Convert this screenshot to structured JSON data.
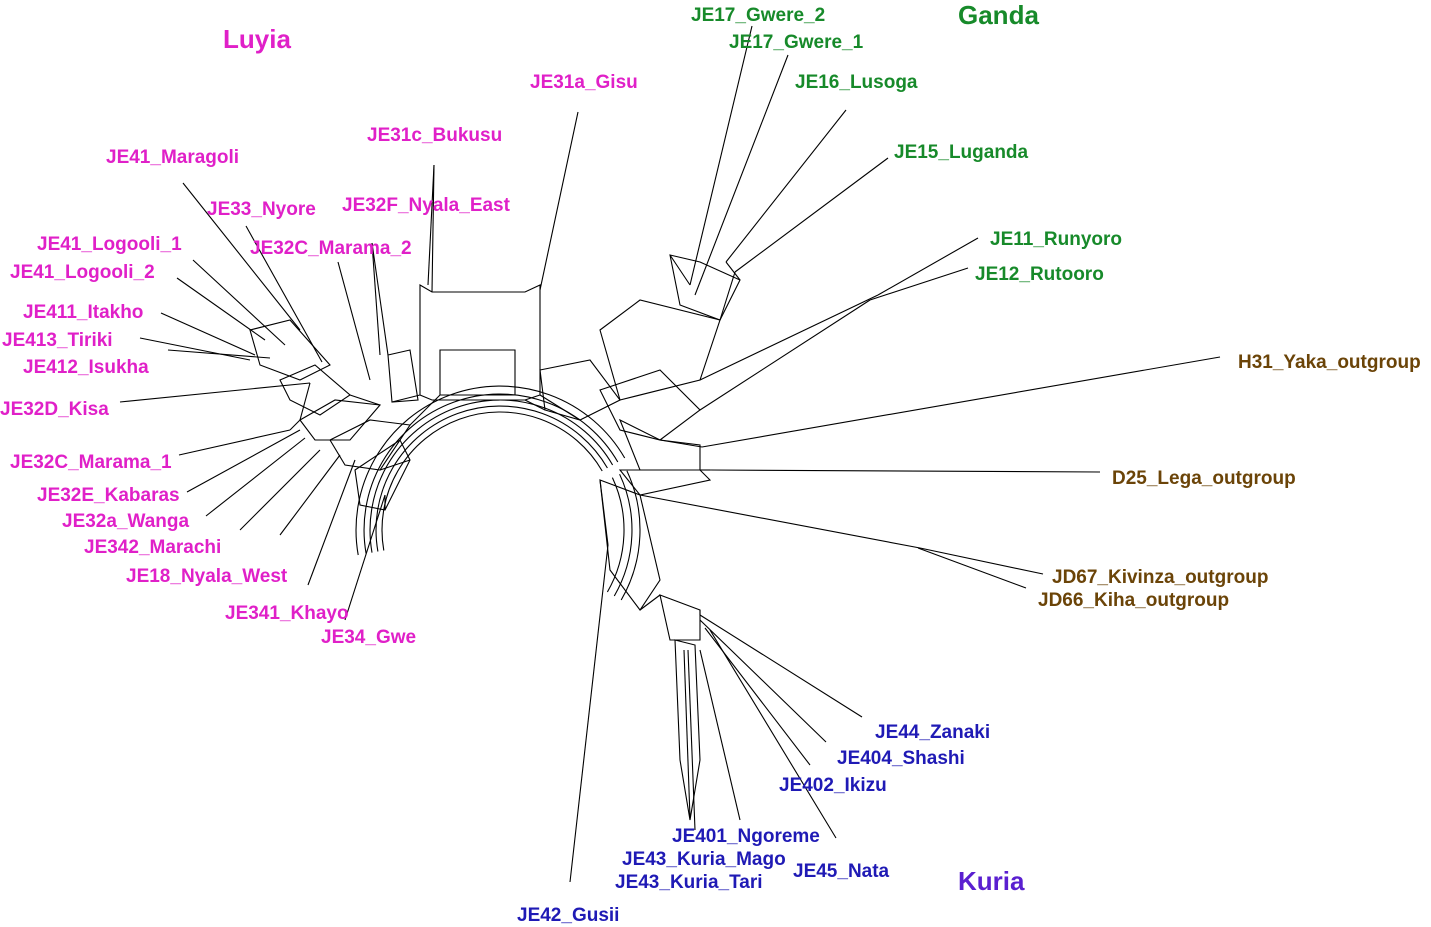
{
  "colors": {
    "luyia": "#e020c8",
    "ganda": "#178a2a",
    "outgroup": "#6b4408",
    "kuria": "#1f1ab5",
    "group_kuria": "#5a1fd0"
  },
  "groups": [
    {
      "id": "luyia",
      "label": "Luyia",
      "color": "luyia"
    },
    {
      "id": "ganda",
      "label": "Ganda",
      "color": "ganda"
    },
    {
      "id": "kuria",
      "label": "Kuria",
      "color": "group_kuria"
    }
  ],
  "taxa": [
    {
      "id": "je17-gwere-2",
      "label": "JE17_Gwere_2",
      "color": "ganda"
    },
    {
      "id": "je17-gwere-1",
      "label": "JE17_Gwere_1",
      "color": "ganda"
    },
    {
      "id": "je16-lusoga",
      "label": "JE16_Lusoga",
      "color": "ganda"
    },
    {
      "id": "je15-luganda",
      "label": "JE15_Luganda",
      "color": "ganda"
    },
    {
      "id": "je11-runyoro",
      "label": "JE11_Runyoro",
      "color": "ganda"
    },
    {
      "id": "je12-rutooro",
      "label": "JE12_Rutooro",
      "color": "ganda"
    },
    {
      "id": "h31-yaka-outgroup",
      "label": "H31_Yaka_outgroup",
      "color": "outgroup"
    },
    {
      "id": "d25-lega-outgroup",
      "label": "D25_Lega_outgroup",
      "color": "outgroup"
    },
    {
      "id": "jd67-kivinza-outgroup",
      "label": "JD67_Kivinza_outgroup",
      "color": "outgroup"
    },
    {
      "id": "jd66-kiha-outgroup",
      "label": "JD66_Kiha_outgroup",
      "color": "outgroup"
    },
    {
      "id": "je44-zanaki",
      "label": "JE44_Zanaki",
      "color": "kuria"
    },
    {
      "id": "je404-shashi",
      "label": "JE404_Shashi",
      "color": "kuria"
    },
    {
      "id": "je402-ikizu",
      "label": "JE402_Ikizu",
      "color": "kuria"
    },
    {
      "id": "je401-ngoreme",
      "label": "JE401_Ngoreme",
      "color": "kuria"
    },
    {
      "id": "je43-kuria-mago",
      "label": "JE43_Kuria_Mago",
      "color": "kuria"
    },
    {
      "id": "je45-nata",
      "label": "JE45_Nata",
      "color": "kuria"
    },
    {
      "id": "je43-kuria-tari",
      "label": "JE43_Kuria_Tari",
      "color": "kuria"
    },
    {
      "id": "je42-gusii",
      "label": "JE42_Gusii",
      "color": "kuria"
    },
    {
      "id": "je31a-gisu",
      "label": "JE31a_Gisu",
      "color": "luyia"
    },
    {
      "id": "je31c-bukusu",
      "label": "JE31c_Bukusu",
      "color": "luyia"
    },
    {
      "id": "je41-maragoli",
      "label": "JE41_Maragoli",
      "color": "luyia"
    },
    {
      "id": "je33-nyore",
      "label": "JE33_Nyore",
      "color": "luyia"
    },
    {
      "id": "je32f-nyala-east",
      "label": "JE32F_Nyala_East",
      "color": "luyia"
    },
    {
      "id": "je41-logooli-1",
      "label": "JE41_Logooli_1",
      "color": "luyia"
    },
    {
      "id": "je32c-marama-2",
      "label": "JE32C_Marama_2",
      "color": "luyia"
    },
    {
      "id": "je41-logooli-2",
      "label": "JE41_Logooli_2",
      "color": "luyia"
    },
    {
      "id": "je411-itakho",
      "label": "JE411_Itakho",
      "color": "luyia"
    },
    {
      "id": "je413-tiriki",
      "label": "JE413_Tiriki",
      "color": "luyia"
    },
    {
      "id": "je412-isukha",
      "label": "JE412_Isukha",
      "color": "luyia"
    },
    {
      "id": "je32d-kisa",
      "label": "JE32D_Kisa",
      "color": "luyia"
    },
    {
      "id": "je32c-marama-1",
      "label": "JE32C_Marama_1",
      "color": "luyia"
    },
    {
      "id": "je32e-kabaras",
      "label": "JE32E_Kabaras",
      "color": "luyia"
    },
    {
      "id": "je32a-wanga",
      "label": "JE32a_Wanga",
      "color": "luyia"
    },
    {
      "id": "je342-marachi",
      "label": "JE342_Marachi",
      "color": "luyia"
    },
    {
      "id": "je18-nyala-west",
      "label": "JE18_Nyala_West",
      "color": "luyia"
    },
    {
      "id": "je341-khayo",
      "label": "JE341_Khayo",
      "color": "luyia"
    },
    {
      "id": "je34-gwe",
      "label": "JE34_Gwe",
      "color": "luyia"
    }
  ]
}
